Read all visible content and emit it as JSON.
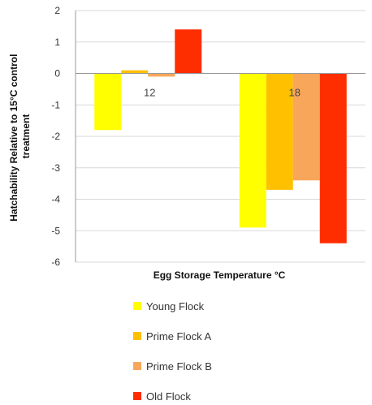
{
  "chart_data": {
    "type": "bar",
    "xlabel": "Egg Storage Temperature °C",
    "ylabel": "Hatchability Relative to 15°C control treatment",
    "categories": [
      "12",
      "18"
    ],
    "series": [
      {
        "name": "Young Flock",
        "color": "#ffff00",
        "values": [
          -1.8,
          -4.9
        ]
      },
      {
        "name": "Prime Flock A",
        "color": "#ffc000",
        "values": [
          0.1,
          -3.7
        ]
      },
      {
        "name": "Prime Flock B",
        "color": "#f8a65a",
        "values": [
          -0.1,
          -3.4
        ]
      },
      {
        "name": "Old Flock",
        "color": "#ff2e00",
        "values": [
          1.4,
          -5.4
        ]
      }
    ],
    "ylim": [
      -6,
      2
    ],
    "yticks": [
      "2",
      "1",
      "0",
      "-1",
      "-2",
      "-3",
      "-4",
      "-5",
      "-6"
    ],
    "grid": true,
    "legend_position": "bottom"
  }
}
